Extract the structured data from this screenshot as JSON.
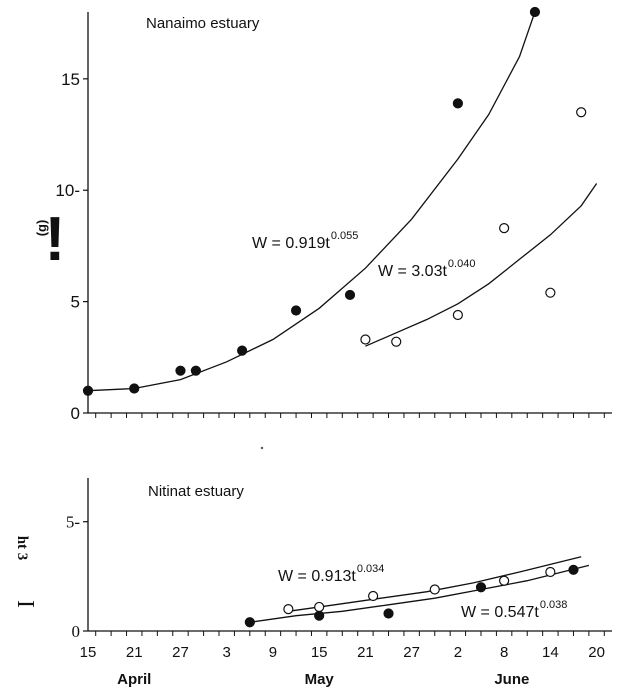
{
  "chart_data": [
    {
      "type": "scatter",
      "annotation_title": "Nanaimo estuary",
      "ylabel_fragments": [
        "(g)",
        "!"
      ],
      "ytick_labels": [
        "0",
        "5",
        "10-",
        "15"
      ],
      "yticks": [
        0,
        5,
        10,
        15
      ],
      "ylim": [
        0,
        18
      ],
      "series": [
        {
          "marker": "filled",
          "points": [
            {
              "x": "Apr 15",
              "y": 1.0
            },
            {
              "x": "Apr 21",
              "y": 1.1
            },
            {
              "x": "Apr 27",
              "y": 1.9
            },
            {
              "x": "Apr 29",
              "y": 1.9
            },
            {
              "x": "May 5",
              "y": 2.8
            },
            {
              "x": "May 12",
              "y": 4.6
            },
            {
              "x": "May 19",
              "y": 5.3
            },
            {
              "x": "Jun 2",
              "y": 13.9
            },
            {
              "x": "Jun 12",
              "y": 18.0
            }
          ],
          "fit": [
            {
              "x": "Apr 15",
              "y": 1.0
            },
            {
              "x": "Apr 21",
              "y": 1.1
            },
            {
              "x": "Apr 27",
              "y": 1.5
            },
            {
              "x": "May 3",
              "y": 2.3
            },
            {
              "x": "May 9",
              "y": 3.3
            },
            {
              "x": "May 15",
              "y": 4.7
            },
            {
              "x": "May 21",
              "y": 6.5
            },
            {
              "x": "May 27",
              "y": 8.7
            },
            {
              "x": "Jun 2",
              "y": 11.4
            },
            {
              "x": "Jun 6",
              "y": 13.4
            },
            {
              "x": "Jun 10",
              "y": 16.0
            },
            {
              "x": "Jun 12",
              "y": 18.0
            }
          ],
          "equation": {
            "base": "W = 0.919t",
            "exp": "0.055"
          }
        },
        {
          "marker": "open",
          "points": [
            {
              "x": "May 21",
              "y": 3.3
            },
            {
              "x": "May 25",
              "y": 3.2
            },
            {
              "x": "Jun 2",
              "y": 4.4
            },
            {
              "x": "Jun 8",
              "y": 8.3
            },
            {
              "x": "Jun 14",
              "y": 5.4
            },
            {
              "x": "Jun 18",
              "y": 13.5
            }
          ],
          "fit": [
            {
              "x": "May 21",
              "y": 3.0
            },
            {
              "x": "May 25",
              "y": 3.6
            },
            {
              "x": "May 29",
              "y": 4.2
            },
            {
              "x": "Jun 2",
              "y": 4.9
            },
            {
              "x": "Jun 6",
              "y": 5.8
            },
            {
              "x": "Jun 10",
              "y": 6.9
            },
            {
              "x": "Jun 14",
              "y": 8.0
            },
            {
              "x": "Jun 18",
              "y": 9.3
            },
            {
              "x": "Jun 20",
              "y": 10.3
            }
          ],
          "equation": {
            "base": "W = 3.03t",
            "exp": "0.040"
          }
        }
      ]
    },
    {
      "type": "scatter",
      "annotation_title": "Nitinat estuary",
      "ylabel_fragments": [
        "ht 3",
        "I"
      ],
      "ytick_labels": [
        "0",
        "5-"
      ],
      "yticks": [
        0,
        5
      ],
      "ylim": [
        0,
        7
      ],
      "xtick_labels": [
        "15",
        "21",
        "27",
        "3",
        "9",
        "15",
        "21",
        "27",
        "2",
        "8",
        "14",
        "20"
      ],
      "month_labels": [
        "April",
        "May",
        "June"
      ],
      "series": [
        {
          "marker": "filled",
          "points": [
            {
              "x": "May 6",
              "y": 0.4
            },
            {
              "x": "May 15",
              "y": 0.7
            },
            {
              "x": "May 24",
              "y": 0.8
            },
            {
              "x": "Jun 5",
              "y": 2.0
            },
            {
              "x": "Jun 17",
              "y": 2.8
            }
          ],
          "fit": [
            {
              "x": "May 6",
              "y": 0.4
            },
            {
              "x": "May 12",
              "y": 0.7
            },
            {
              "x": "May 18",
              "y": 0.9
            },
            {
              "x": "May 24",
              "y": 1.2
            },
            {
              "x": "May 30",
              "y": 1.5
            },
            {
              "x": "Jun 5",
              "y": 1.9
            },
            {
              "x": "Jun 11",
              "y": 2.3
            },
            {
              "x": "Jun 19",
              "y": 3.0
            }
          ],
          "equation": {
            "base": "W = 0.547t",
            "exp": "0.038"
          }
        },
        {
          "marker": "open",
          "points": [
            {
              "x": "May 11",
              "y": 1.0
            },
            {
              "x": "May 15",
              "y": 1.1
            },
            {
              "x": "May 22",
              "y": 1.6
            },
            {
              "x": "May 30",
              "y": 1.9
            },
            {
              "x": "Jun 8",
              "y": 2.3
            },
            {
              "x": "Jun 14",
              "y": 2.7
            }
          ],
          "fit": [
            {
              "x": "May 11",
              "y": 0.9
            },
            {
              "x": "May 17",
              "y": 1.2
            },
            {
              "x": "May 23",
              "y": 1.5
            },
            {
              "x": "May 29",
              "y": 1.8
            },
            {
              "x": "Jun 4",
              "y": 2.2
            },
            {
              "x": "Jun 10",
              "y": 2.7
            },
            {
              "x": "Jun 18",
              "y": 3.4
            }
          ],
          "equation": {
            "base": "W = 0.913t",
            "exp": "0.034"
          }
        }
      ]
    }
  ]
}
